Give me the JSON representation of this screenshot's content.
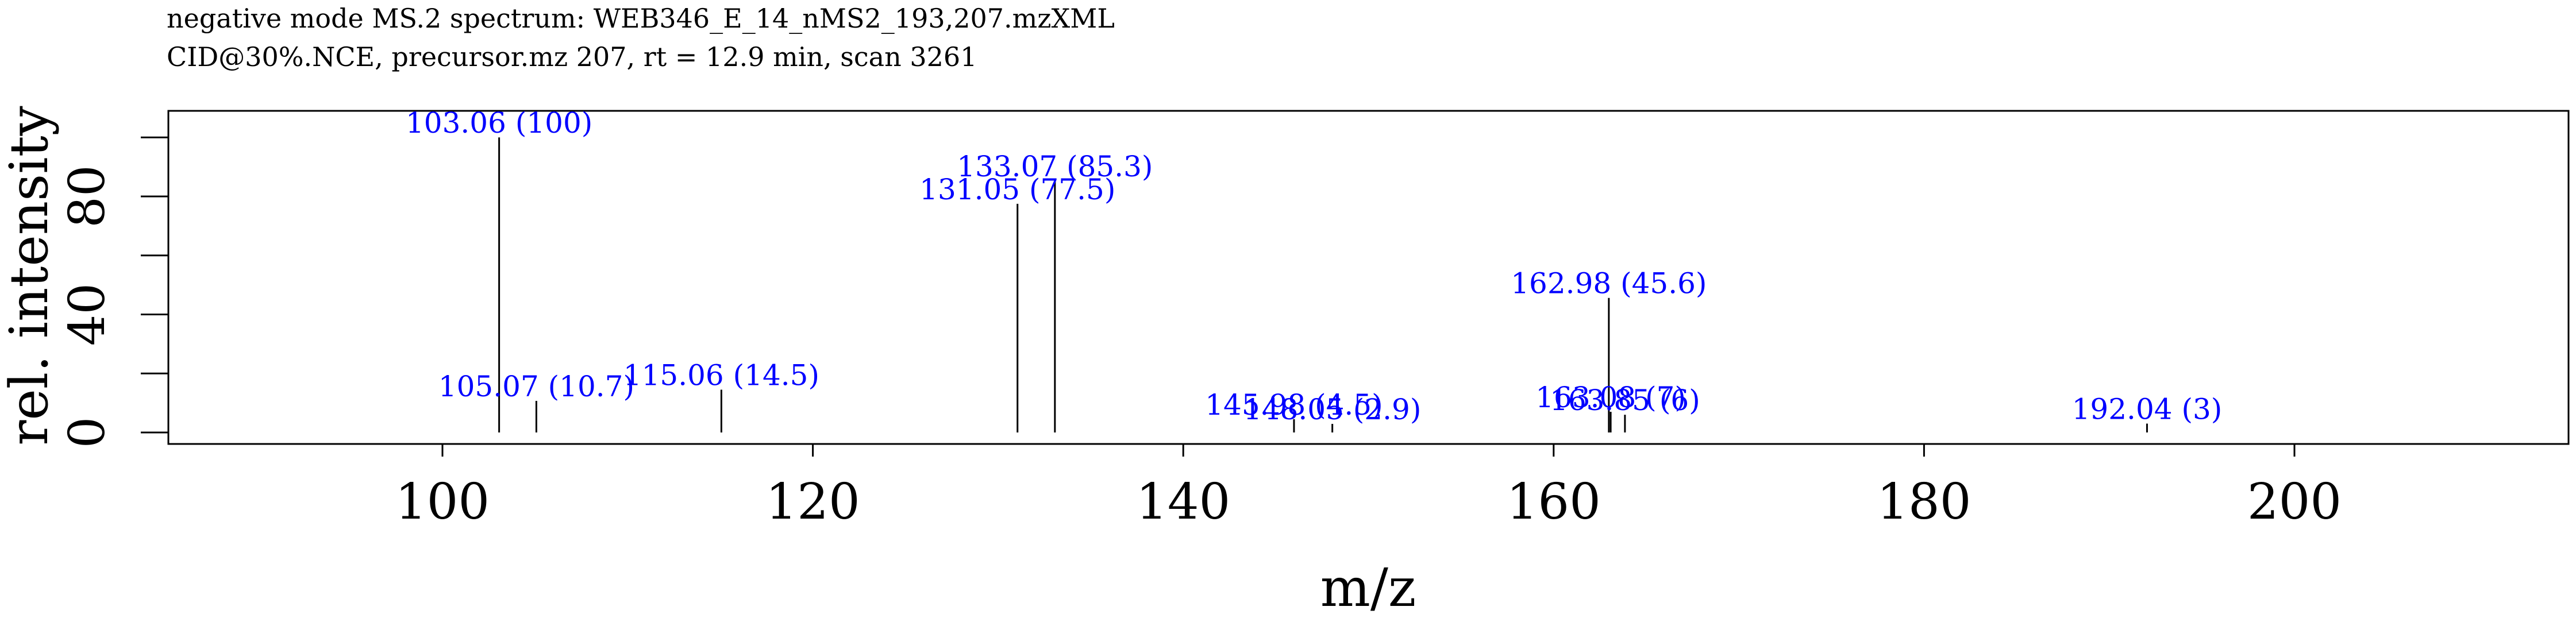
{
  "title": {
    "line1": "negative mode MS.2 spectrum: WEB346_E_14_nMS2_193,207.mzXML",
    "line2": "CID@30%.NCE, precursor.mz 207, rt = 12.9 min, scan 3261"
  },
  "chart_data": {
    "type": "bar",
    "xlabel": "m/z",
    "ylabel": "rel. intensity",
    "xlim": [
      85.2,
      214.8
    ],
    "ylim": [
      -3.9,
      109
    ],
    "x_ticks": [
      100,
      120,
      140,
      160,
      180,
      200
    ],
    "y_ticks_labeled": [
      0,
      40,
      80
    ],
    "y_ticks_minor": [
      20,
      60,
      100
    ],
    "label_color": "#0000ff",
    "peaks": [
      {
        "mz": 103.06,
        "intensity": 100,
        "label": "103.06 (100)"
      },
      {
        "mz": 105.07,
        "intensity": 10.7,
        "label": "105.07 (10.7)"
      },
      {
        "mz": 115.06,
        "intensity": 14.5,
        "label": "115.06 (14.5)"
      },
      {
        "mz": 131.05,
        "intensity": 77.5,
        "label": "131.05 (77.5)"
      },
      {
        "mz": 133.07,
        "intensity": 85.3,
        "label": "133.07 (85.3)"
      },
      {
        "mz": 145.98,
        "intensity": 4.5,
        "label": "145.98 (4.5)"
      },
      {
        "mz": 148.05,
        "intensity": 2.9,
        "label": "148.05 (2.9)"
      },
      {
        "mz": 162.98,
        "intensity": 45.6,
        "label": "162.98 (45.6)"
      },
      {
        "mz": 163.08,
        "intensity": 7,
        "label": "163.08 (7)"
      },
      {
        "mz": 163.85,
        "intensity": 6,
        "label": "163.85 (6)"
      },
      {
        "mz": 192.04,
        "intensity": 3,
        "label": "192.04 (3)"
      }
    ]
  }
}
